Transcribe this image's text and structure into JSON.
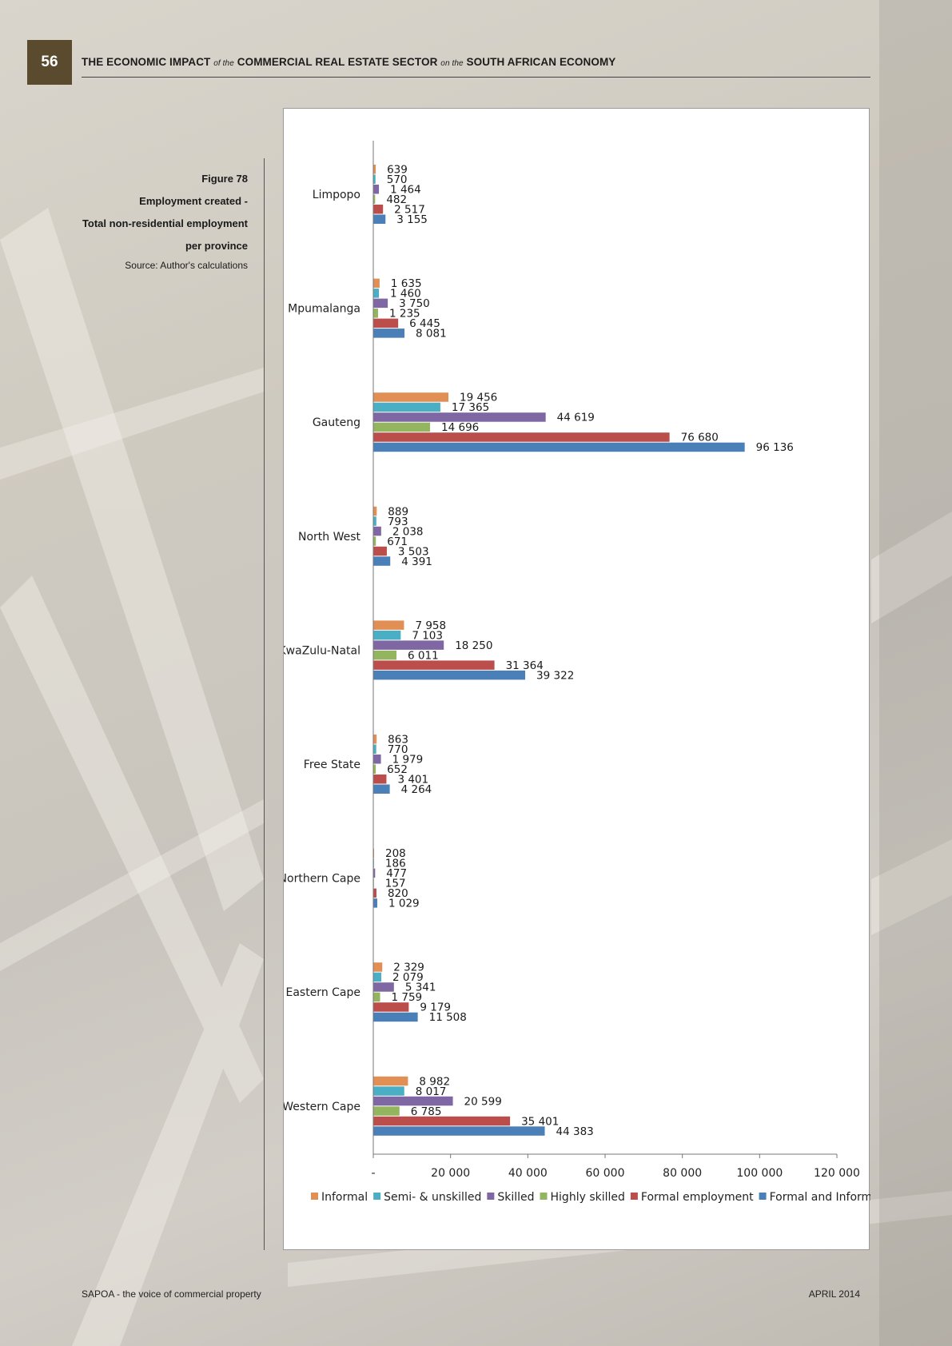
{
  "header": {
    "page_number": "56",
    "title_part1": "THE ECONOMIC IMPACT",
    "title_of_the": "of the",
    "title_part2": "COMMERCIAL REAL ESTATE SECTOR",
    "title_on_the": "on the",
    "title_part3": "SOUTH AFRICAN ECONOMY"
  },
  "caption": {
    "figure": "Figure 78",
    "line1": "Employment created -",
    "line2": "Total non-residential employment",
    "line3": "per province",
    "source": "Source: Author's calculations"
  },
  "footer": {
    "left": "SAPOA - the voice of commercial property",
    "right": "APRIL 2014"
  },
  "chart_data": {
    "type": "bar",
    "orientation": "horizontal",
    "title": "",
    "xlabel": "",
    "ylabel": "",
    "xlim": [
      0,
      120000
    ],
    "x_ticks": [
      0,
      20000,
      40000,
      60000,
      80000,
      100000,
      120000
    ],
    "x_tick_labels": [
      "-",
      "20 000",
      "40 000",
      "60 000",
      "80 000",
      "100 000",
      "120 000"
    ],
    "legend_position": "bottom",
    "categories": [
      "Limpopo",
      "Mpumalanga",
      "Gauteng",
      "North West",
      "KwaZulu-Natal",
      "Free State",
      "Northern Cape",
      "Eastern Cape",
      "Western Cape"
    ],
    "series": [
      {
        "name": "Informal",
        "color": "#e28f55",
        "values": [
          639,
          1635,
          19456,
          889,
          7958,
          863,
          208,
          2329,
          8982
        ],
        "labels": [
          "639",
          "1 635",
          "19 456",
          "889",
          "7 958",
          "863",
          "208",
          "2 329",
          "8 982"
        ]
      },
      {
        "name": "Semi- & unskilled",
        "color": "#4aafc4",
        "values": [
          570,
          1460,
          17365,
          793,
          7103,
          770,
          186,
          2079,
          8017
        ],
        "labels": [
          "570",
          "1 460",
          "17 365",
          "793",
          "7 103",
          "770",
          "186",
          "2 079",
          "8 017"
        ]
      },
      {
        "name": "Skilled",
        "color": "#7e67a2",
        "values": [
          1464,
          3750,
          44619,
          2038,
          18250,
          1979,
          477,
          5341,
          20599
        ],
        "labels": [
          "1 464",
          "3 750",
          "44 619",
          "2 038",
          "18 250",
          "1 979",
          "477",
          "5 341",
          "20 599"
        ]
      },
      {
        "name": "Highly skilled",
        "color": "#94b560",
        "values": [
          482,
          1235,
          14696,
          671,
          6011,
          652,
          157,
          1759,
          6785
        ],
        "labels": [
          "482",
          "1 235",
          "14 696",
          "671",
          "6 011",
          "652",
          "157",
          "1 759",
          "6 785"
        ]
      },
      {
        "name": "Formal employment",
        "color": "#bb4d4b",
        "values": [
          2517,
          6445,
          76680,
          3503,
          31364,
          3401,
          820,
          9179,
          35401
        ],
        "labels": [
          "2 517",
          "6 445",
          "76 680",
          "3 503",
          "31 364",
          "3 401",
          "820",
          "9 179",
          "35 401"
        ]
      },
      {
        "name": "Formal and Informal",
        "color": "#4a7fb8",
        "values": [
          3155,
          8081,
          96136,
          4391,
          39322,
          4264,
          1029,
          11508,
          44383
        ],
        "labels": [
          "3 155",
          "8 081",
          "96 136",
          "4 391",
          "39 322",
          "4 264",
          "1 029",
          "11 508",
          "44 383"
        ]
      }
    ]
  }
}
